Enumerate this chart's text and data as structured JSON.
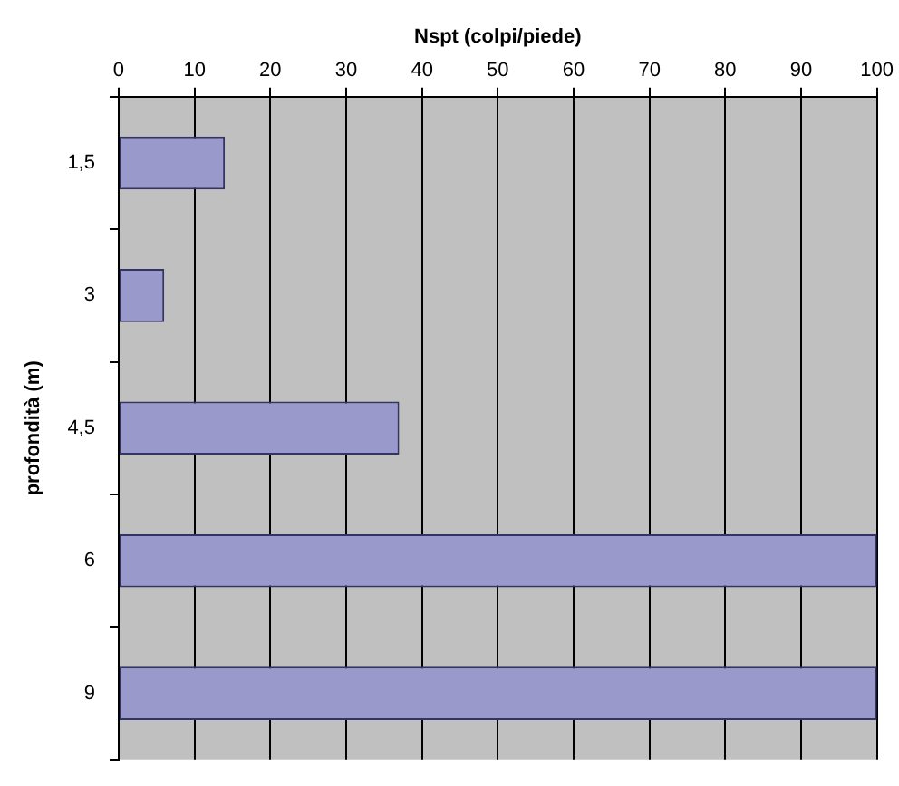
{
  "chart_data": {
    "type": "bar",
    "orientation": "horizontal",
    "xlabel": "Nspt (colpi/piede)",
    "ylabel": "profondità (m)",
    "categories": [
      "1,5",
      "3",
      "4,5",
      "6",
      "9"
    ],
    "series": [
      {
        "color": "#9999cc",
        "values": [
          14,
          6,
          37,
          100,
          100
        ]
      }
    ],
    "xlim": [
      0,
      100
    ],
    "xticks": [
      0,
      10,
      20,
      30,
      40,
      50,
      60,
      70,
      80,
      90,
      100
    ],
    "grid": "x",
    "legend": false
  }
}
